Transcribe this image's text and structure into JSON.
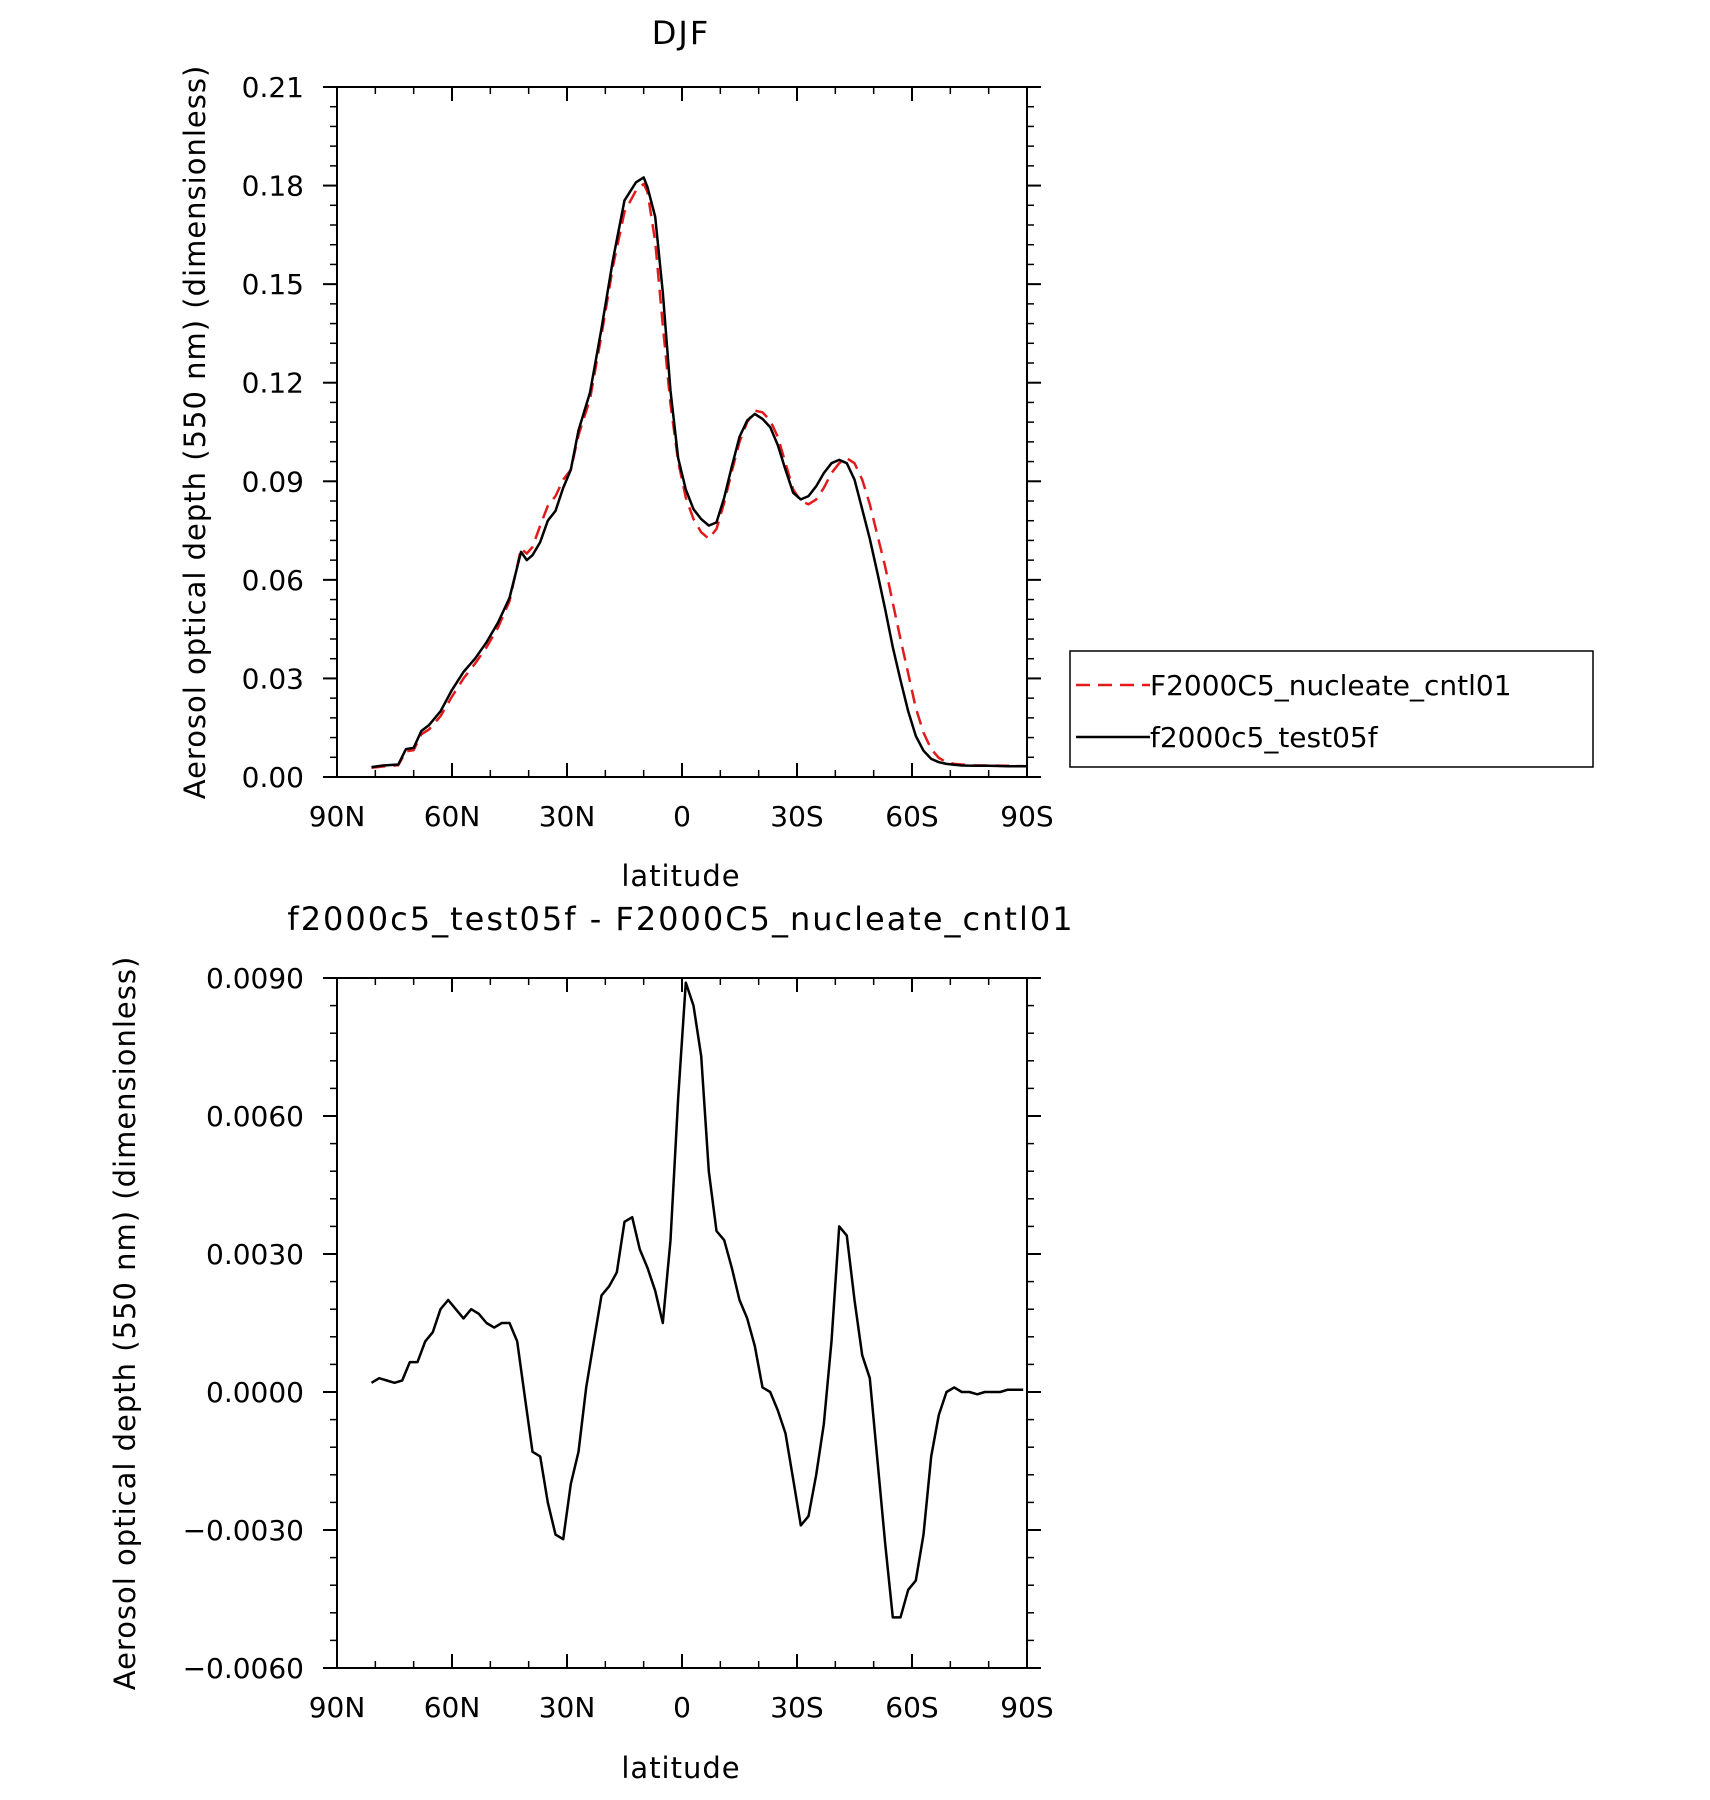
{
  "chart_data": [
    {
      "type": "line",
      "title": "DJF",
      "xlabel": "latitude",
      "ylabel": "Aerosol optical depth (550 nm) (dimensionless)",
      "xlim": [
        90,
        -90
      ],
      "ylim": [
        0.0,
        0.21
      ],
      "x_ticks": [
        90,
        60,
        30,
        0,
        -30,
        -60,
        -90
      ],
      "x_tick_labels": [
        "90N",
        "60N",
        "30N",
        "0",
        "30S",
        "60S",
        "90S"
      ],
      "y_ticks": [
        0.0,
        0.03,
        0.06,
        0.09,
        0.12,
        0.15,
        0.18,
        0.21
      ],
      "y_tick_labels": [
        "0.00",
        "0.03",
        "0.06",
        "0.09",
        "0.12",
        "0.15",
        "0.18",
        "0.21"
      ],
      "grid": false,
      "legend": "right, outside plot",
      "series": [
        {
          "name": "F2000C5_nucleate_cntl01",
          "color": "#e31a1c",
          "dash": "dashed",
          "x": [
            81,
            78,
            74,
            72,
            70,
            68,
            66,
            63,
            60,
            57,
            54,
            51,
            48,
            45,
            42,
            40.5,
            39,
            37,
            35,
            33,
            31,
            29,
            27,
            24,
            21,
            18,
            15,
            12,
            10,
            9,
            7,
            5,
            3,
            1,
            -1,
            -3,
            -5,
            -7,
            -9,
            -11,
            -13,
            -15,
            -17,
            -19,
            -21,
            -23,
            -25,
            -27,
            -29,
            -31,
            -33,
            -35,
            -37,
            -39,
            -41,
            -43,
            -45,
            -47,
            -49,
            -51,
            -53,
            -55,
            -57,
            -59,
            -61,
            -63,
            -65,
            -67,
            -69,
            -71,
            -73,
            -76,
            -80,
            -85,
            -90
          ],
          "y": [
            0.0028,
            0.0032,
            0.0036,
            0.0078,
            0.0082,
            0.013,
            0.0145,
            0.0185,
            0.0245,
            0.03,
            0.0345,
            0.0395,
            0.0455,
            0.0535,
            0.0695,
            0.068,
            0.07,
            0.0765,
            0.0825,
            0.0855,
            0.0905,
            0.0935,
            0.104,
            0.115,
            0.1345,
            0.1555,
            0.172,
            0.1785,
            0.1805,
            0.178,
            0.163,
            0.1375,
            0.1135,
            0.096,
            0.085,
            0.0785,
            0.0745,
            0.0725,
            0.0755,
            0.0835,
            0.093,
            0.102,
            0.108,
            0.1115,
            0.111,
            0.1085,
            0.1035,
            0.0955,
            0.0875,
            0.084,
            0.083,
            0.0845,
            0.088,
            0.0925,
            0.0955,
            0.097,
            0.0955,
            0.0905,
            0.083,
            0.0735,
            0.064,
            0.053,
            0.042,
            0.0315,
            0.021,
            0.0135,
            0.0085,
            0.0058,
            0.0045,
            0.004,
            0.0038,
            0.0036,
            0.0035,
            0.0034,
            0.0033
          ]
        },
        {
          "name": "f2000c5_test05f",
          "color": "#000000",
          "dash": "solid",
          "x": [
            81,
            78,
            74,
            72,
            70,
            68,
            66,
            63,
            60,
            57,
            54,
            51,
            48,
            45,
            42,
            40.5,
            39,
            37,
            35,
            33,
            31,
            29,
            27,
            24,
            21,
            18,
            15,
            12,
            10,
            9,
            7,
            5,
            3,
            1,
            -1,
            -3,
            -5,
            -7,
            -9,
            -11,
            -13,
            -15,
            -17,
            -19,
            -21,
            -23,
            -25,
            -27,
            -29,
            -31,
            -33,
            -35,
            -37,
            -39,
            -41,
            -43,
            -45,
            -47,
            -49,
            -51,
            -53,
            -55,
            -57,
            -59,
            -61,
            -63,
            -65,
            -67,
            -69,
            -71,
            -73,
            -76,
            -80,
            -85,
            -90
          ],
          "y": [
            0.003,
            0.0035,
            0.0038,
            0.0085,
            0.0089,
            0.014,
            0.0158,
            0.02,
            0.0265,
            0.032,
            0.036,
            0.041,
            0.047,
            0.0545,
            0.0685,
            0.066,
            0.0675,
            0.0715,
            0.078,
            0.081,
            0.088,
            0.0935,
            0.1055,
            0.117,
            0.1365,
            0.1575,
            0.1755,
            0.181,
            0.1825,
            0.1795,
            0.1705,
            0.1475,
            0.1175,
            0.097,
            0.0875,
            0.0815,
            0.0785,
            0.0765,
            0.0775,
            0.085,
            0.0945,
            0.1035,
            0.1085,
            0.1105,
            0.109,
            0.1065,
            0.101,
            0.0935,
            0.0865,
            0.0845,
            0.0855,
            0.0885,
            0.0925,
            0.0955,
            0.0965,
            0.0955,
            0.0905,
            0.0815,
            0.0725,
            0.062,
            0.051,
            0.0395,
            0.0295,
            0.02,
            0.0125,
            0.008,
            0.0055,
            0.0045,
            0.004,
            0.0037,
            0.0035,
            0.0034,
            0.0034,
            0.0033,
            0.0033
          ]
        }
      ]
    },
    {
      "type": "line",
      "title": "f2000c5_test05f - F2000C5_nucleate_cntl01",
      "xlabel": "latitude",
      "ylabel": "Aerosol optical depth (550 nm) (dimensionless)",
      "xlim": [
        90,
        -90
      ],
      "ylim": [
        -0.006,
        0.009
      ],
      "x_ticks": [
        90,
        60,
        30,
        0,
        -30,
        -60,
        -90
      ],
      "x_tick_labels": [
        "90N",
        "60N",
        "30N",
        "0",
        "30S",
        "60S",
        "90S"
      ],
      "y_ticks": [
        -0.006,
        -0.003,
        0.0,
        0.003,
        0.006,
        0.009
      ],
      "y_tick_labels": [
        "−0.0060",
        "−0.0030",
        "0.0000",
        "0.0030",
        "0.0060",
        "0.0090"
      ],
      "grid": false,
      "series": [
        {
          "color": "#000000",
          "dash": "solid",
          "x": [
            81,
            79,
            77,
            75,
            73,
            71,
            69,
            67,
            65,
            63,
            61,
            59,
            57,
            55,
            53,
            51,
            49,
            47,
            45,
            43,
            41,
            39,
            37,
            35,
            33,
            31,
            29,
            27,
            25,
            23,
            21,
            19,
            17,
            15,
            13,
            11,
            9,
            7,
            5,
            3,
            1,
            -1,
            -3,
            -5,
            -7,
            -9,
            -11,
            -13,
            -15,
            -17,
            -19,
            -21,
            -23,
            -25,
            -27,
            -29,
            -31,
            -33,
            -35,
            -37,
            -39,
            -41,
            -43,
            -45,
            -47,
            -49,
            -51,
            -53,
            -55,
            -57,
            -59,
            -61,
            -63,
            -65,
            -67,
            -69,
            -71,
            -73,
            -75,
            -77,
            -79,
            -81,
            -83,
            -85,
            -87,
            -89
          ],
          "y": [
            0.0002,
            0.0003,
            0.00025,
            0.0002,
            0.00025,
            0.00065,
            0.00065,
            0.0011,
            0.0013,
            0.0018,
            0.002,
            0.0018,
            0.0016,
            0.0018,
            0.0017,
            0.0015,
            0.0014,
            0.0015,
            0.0015,
            0.0011,
            -0.0001,
            -0.0013,
            -0.0014,
            -0.0024,
            -0.0031,
            -0.0032,
            -0.002,
            -0.0013,
            0.0001,
            0.0011,
            0.0021,
            0.0023,
            0.0026,
            0.0037,
            0.0038,
            0.0031,
            0.0027,
            0.0022,
            0.0015,
            0.0033,
            0.0064,
            0.0089,
            0.0084,
            0.0073,
            0.0048,
            0.0035,
            0.0033,
            0.0027,
            0.002,
            0.0016,
            0.001,
            0.0001,
            0.0,
            -0.0004,
            -0.0009,
            -0.0019,
            -0.0029,
            -0.0027,
            -0.0018,
            -0.0007,
            0.0011,
            0.0036,
            0.0034,
            0.002,
            0.0008,
            0.0003,
            -0.0015,
            -0.0033,
            -0.0049,
            -0.0049,
            -0.0043,
            -0.0041,
            -0.0031,
            -0.0014,
            -0.0005,
            0.0,
            0.0001,
            0.0,
            0.0,
            -5e-05,
            0.0,
            0.0,
            0.0,
            5e-05,
            5e-05,
            5e-05
          ]
        }
      ]
    }
  ]
}
